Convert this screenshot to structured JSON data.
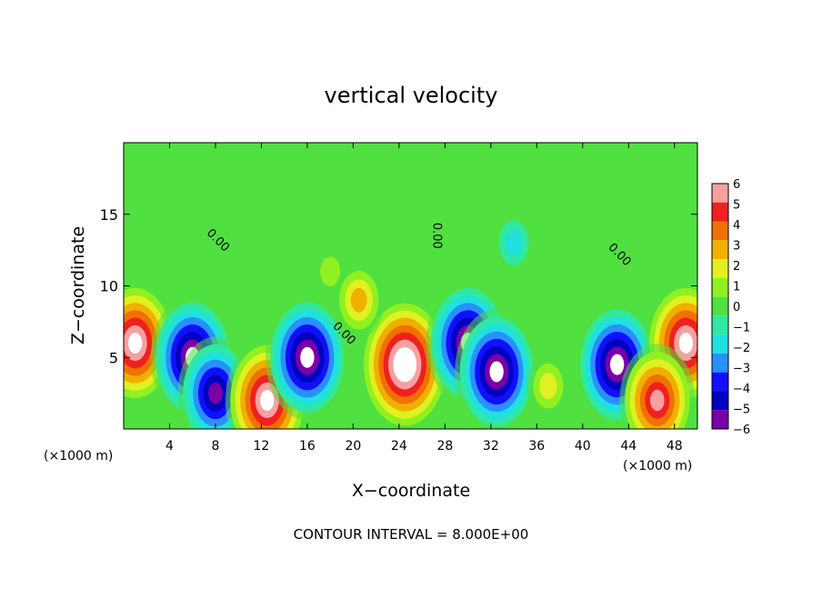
{
  "chart_data": {
    "type": "heatmap",
    "title": "vertical velocity",
    "xlabel": "X−coordinate",
    "ylabel": "Z−coordinate",
    "x_unit_left": "(×1000 m)",
    "x_unit_right": "(×1000 m)",
    "footer": "CONTOUR INTERVAL = 8.000E+00",
    "xlim": [
      0,
      50
    ],
    "ylim": [
      0,
      20
    ],
    "x_ticks": [
      4,
      8,
      12,
      16,
      20,
      24,
      28,
      32,
      36,
      40,
      44,
      48
    ],
    "y_ticks": [
      5,
      10,
      15
    ],
    "x_tick_labels": [
      "4",
      "8",
      "12",
      "16",
      "20",
      "24",
      "28",
      "32",
      "36",
      "40",
      "44",
      "48"
    ],
    "y_tick_labels": [
      "5",
      "10",
      "15"
    ],
    "colorbar": {
      "min": -6,
      "max": 6,
      "tick_labels": [
        "6",
        "5",
        "4",
        "3",
        "2",
        "1",
        "0",
        "−1",
        "−2",
        "−3",
        "−4",
        "−5",
        "−6"
      ],
      "levels": [
        {
          "value": -6,
          "color": "#7a00a8"
        },
        {
          "value": -5,
          "color": "#0000c0"
        },
        {
          "value": -4,
          "color": "#1010ff"
        },
        {
          "value": -3,
          "color": "#2a90ff"
        },
        {
          "value": -2,
          "color": "#20e0e0"
        },
        {
          "value": -1,
          "color": "#30e8a0"
        },
        {
          "value": 0,
          "color": "#50e040"
        },
        {
          "value": 1,
          "color": "#90f020"
        },
        {
          "value": 2,
          "color": "#e0f020"
        },
        {
          "value": 3,
          "color": "#f0b000"
        },
        {
          "value": 4,
          "color": "#f07000"
        },
        {
          "value": 5,
          "color": "#f02020"
        },
        {
          "value": 6,
          "color": "#f8a0a0"
        }
      ]
    },
    "contour_labels": [
      "0.00",
      "0.00",
      "0.00",
      "0.00"
    ],
    "cells": [
      {
        "x": 1,
        "z": 6,
        "w": 7
      },
      {
        "x": 6,
        "z": 5,
        "w": -7
      },
      {
        "x": 8,
        "z": 2.5,
        "w": -6
      },
      {
        "x": 12.5,
        "z": 2,
        "w": 7
      },
      {
        "x": 16,
        "z": 5,
        "w": -7
      },
      {
        "x": 24.5,
        "z": 4.5,
        "w": 8
      },
      {
        "x": 30,
        "z": 6,
        "w": -7
      },
      {
        "x": 32.5,
        "z": 4,
        "w": -7
      },
      {
        "x": 43,
        "z": 4.5,
        "w": -7
      },
      {
        "x": 49,
        "z": 6,
        "w": 7
      },
      {
        "x": 46.5,
        "z": 2,
        "w": 6
      },
      {
        "x": 18,
        "z": 11,
        "w": 1
      },
      {
        "x": 20.5,
        "z": 9,
        "w": 3
      },
      {
        "x": 37,
        "z": 3,
        "w": 2
      },
      {
        "x": 34,
        "z": 13,
        "w": -2
      }
    ]
  }
}
